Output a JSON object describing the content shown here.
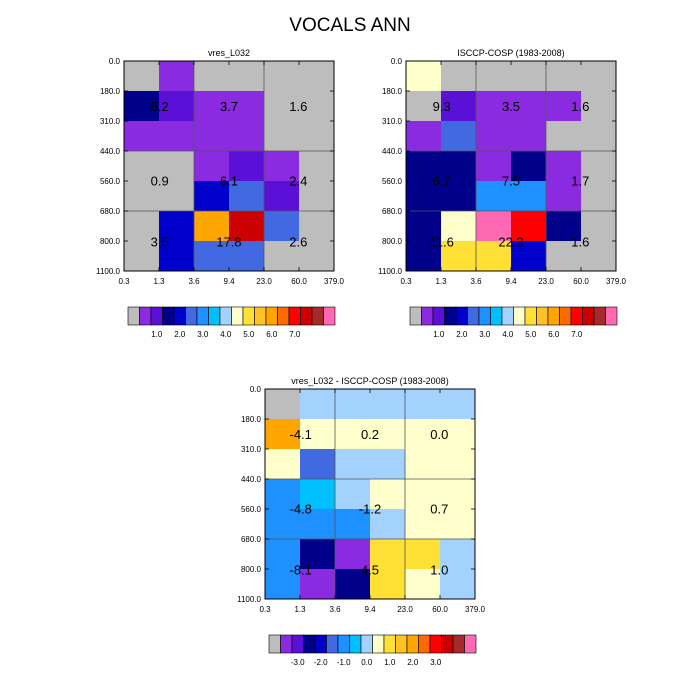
{
  "title": "VOCALS ANN",
  "colors": {
    "main_palette": [
      "#bdbdbd",
      "#8a2be2",
      "#5b10d8",
      "#00008b",
      "#0000cd",
      "#4169e1",
      "#1e90ff",
      "#00bfff",
      "#a4d2ff",
      "#ffffcc",
      "#ffe135",
      "#ffc125",
      "#ffa500",
      "#ff6a00",
      "#ff0000",
      "#cc0000",
      "#a52a2a",
      "#ff69b4"
    ],
    "diff_palette": [
      "#bdbdbd",
      "#8a2be2",
      "#5b10d8",
      "#00008b",
      "#0000cd",
      "#4169e1",
      "#1e90ff",
      "#00bfff",
      "#a4d2ff",
      "#ffffcc",
      "#ffe135",
      "#ffc125",
      "#ffa500",
      "#ff6a00",
      "#ff0000",
      "#cc0000",
      "#a52a2a",
      "#ff69b4"
    ]
  },
  "chart_data": [
    {
      "type": "heatmap",
      "title": "vres_L032",
      "x_ticks": [
        "0.3",
        "1.3",
        "3.6",
        "9.4",
        "23.0",
        "60.0",
        "379.0"
      ],
      "y_ticks": [
        "0.0",
        "180.0",
        "310.0",
        "440.0",
        "560.0",
        "680.0",
        "800.0",
        "1100.0"
      ],
      "cells": [
        [
          0,
          1,
          0,
          0,
          0,
          0
        ],
        [
          3,
          2,
          1,
          1,
          0,
          0
        ],
        [
          1,
          1,
          1,
          1,
          0,
          0
        ],
        [
          0,
          0,
          1,
          2,
          1,
          0
        ],
        [
          0,
          0,
          4,
          5,
          2,
          0
        ],
        [
          0,
          4,
          12,
          15,
          5,
          0
        ],
        [
          0,
          4,
          5,
          5,
          0,
          0
        ]
      ],
      "group_values": [
        "5.2",
        "3.7",
        "1.6",
        "0.9",
        "6.1",
        "2.4",
        "3.5",
        "17.8",
        "2.6"
      ],
      "colorbar_labels": [
        "1.0",
        "2.0",
        "3.0",
        "4.0",
        "5.0",
        "6.0",
        "7.0"
      ]
    },
    {
      "type": "heatmap",
      "title": "ISCCP-COSP (1983-2008)",
      "x_ticks": [
        "0.3",
        "1.3",
        "3.6",
        "9.4",
        "23.0",
        "60.0",
        "379.0"
      ],
      "y_ticks": [
        "0.0",
        "180.0",
        "310.0",
        "440.0",
        "560.0",
        "680.0",
        "800.0",
        "1100.0"
      ],
      "cells": [
        [
          9,
          0,
          0,
          0,
          0,
          0
        ],
        [
          0,
          2,
          1,
          1,
          1,
          0
        ],
        [
          1,
          5,
          1,
          1,
          0,
          0
        ],
        [
          3,
          3,
          1,
          3,
          1,
          0
        ],
        [
          3,
          3,
          6,
          6,
          1,
          0
        ],
        [
          3,
          9,
          17,
          14,
          3,
          0
        ],
        [
          3,
          10,
          10,
          4,
          0,
          0
        ]
      ],
      "group_values": [
        "9.3",
        "3.5",
        "1.6",
        "6.7",
        "7.5",
        "1.7",
        "11.6",
        "22.3",
        "1.6"
      ],
      "colorbar_labels": [
        "1.0",
        "2.0",
        "3.0",
        "4.0",
        "5.0",
        "6.0",
        "7.0"
      ]
    },
    {
      "type": "heatmap",
      "title": "vres_L032 - ISCCP-COSP (1983-2008)",
      "x_ticks": [
        "0.3",
        "1.3",
        "3.6",
        "9.4",
        "23.0",
        "60.0",
        "379.0"
      ],
      "y_ticks": [
        "0.0",
        "180.0",
        "310.0",
        "440.0",
        "560.0",
        "680.0",
        "800.0",
        "1100.0"
      ],
      "cells": [
        [
          0,
          8,
          8,
          8,
          8,
          8
        ],
        [
          12,
          9,
          9,
          9,
          9,
          9
        ],
        [
          9,
          5,
          8,
          8,
          9,
          9
        ],
        [
          6,
          7,
          8,
          9,
          9,
          9
        ],
        [
          6,
          6,
          6,
          8,
          9,
          9
        ],
        [
          6,
          3,
          1,
          10,
          10,
          8
        ],
        [
          6,
          1,
          3,
          10,
          9,
          8
        ]
      ],
      "group_values": [
        "-4.1",
        "0.2",
        "0.0",
        "-4.8",
        "-1.2",
        "0.7",
        "-8.1",
        "4.5",
        "1.0"
      ],
      "colorbar_labels": [
        "-3.0",
        "-2.0",
        "-1.0",
        "0.0",
        "1.0",
        "2.0",
        "3.0"
      ]
    }
  ]
}
